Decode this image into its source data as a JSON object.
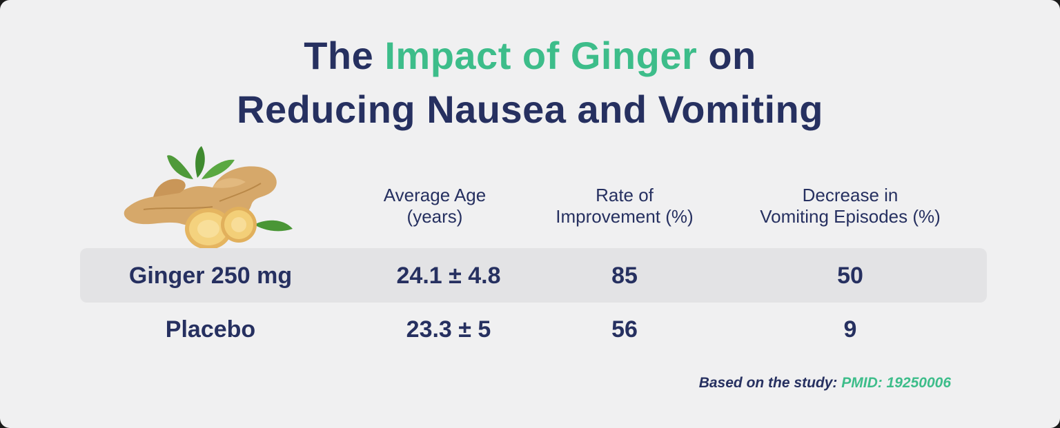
{
  "title": {
    "line1_pre": "The ",
    "line1_accent": "Impact of Ginger",
    "line1_post": " on",
    "line2": "Reducing Nausea and Vomiting"
  },
  "image": {
    "icon": "ginger-root-image"
  },
  "chart_data": {
    "type": "table",
    "columns": [
      {
        "line1": "Average Age",
        "line2": "(years)"
      },
      {
        "line1": "Rate of",
        "line2": "Improvement (%)"
      },
      {
        "line1": "Decrease in",
        "line2": "Vomiting Episodes (%)"
      }
    ],
    "rows": [
      {
        "label": "Ginger 250 mg",
        "values": [
          "24.1 ± 4.8",
          "85",
          "50"
        ],
        "highlight": true
      },
      {
        "label": "Placebo",
        "values": [
          "23.3 ± 5",
          "56",
          "9"
        ],
        "highlight": false
      }
    ]
  },
  "footnote": {
    "prefix": "Based on the study: ",
    "reference": "PMID: 19250006"
  },
  "colors": {
    "navy": "#263060",
    "green": "#3dbd8a",
    "background": "#f0f0f1",
    "row_band": "#e3e3e5"
  }
}
